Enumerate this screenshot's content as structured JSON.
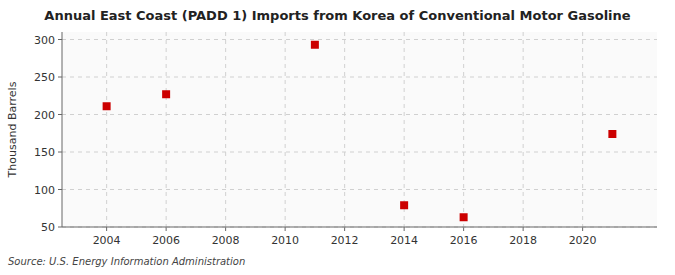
{
  "chart_data": {
    "type": "scatter",
    "title": "Annual East Coast (PADD 1) Imports from Korea of Conventional Motor Gasoline",
    "y_label": "Thousand Barrels",
    "annotation": "Source: U.S. Energy Information Administration",
    "x": [
      2004,
      2006,
      2011,
      2014,
      2016,
      2021
    ],
    "values": [
      211,
      227,
      293,
      79,
      63,
      174
    ],
    "color": "#cc0000",
    "marker": "square",
    "xlim": [
      2002.5,
      2022.5
    ],
    "ylim": [
      50,
      310
    ],
    "xticks": [
      2004,
      2006,
      2008,
      2010,
      2012,
      2014,
      2016,
      2018,
      2020
    ],
    "yticks": [
      50,
      100,
      150,
      200,
      250,
      300
    ],
    "grid": true
  }
}
